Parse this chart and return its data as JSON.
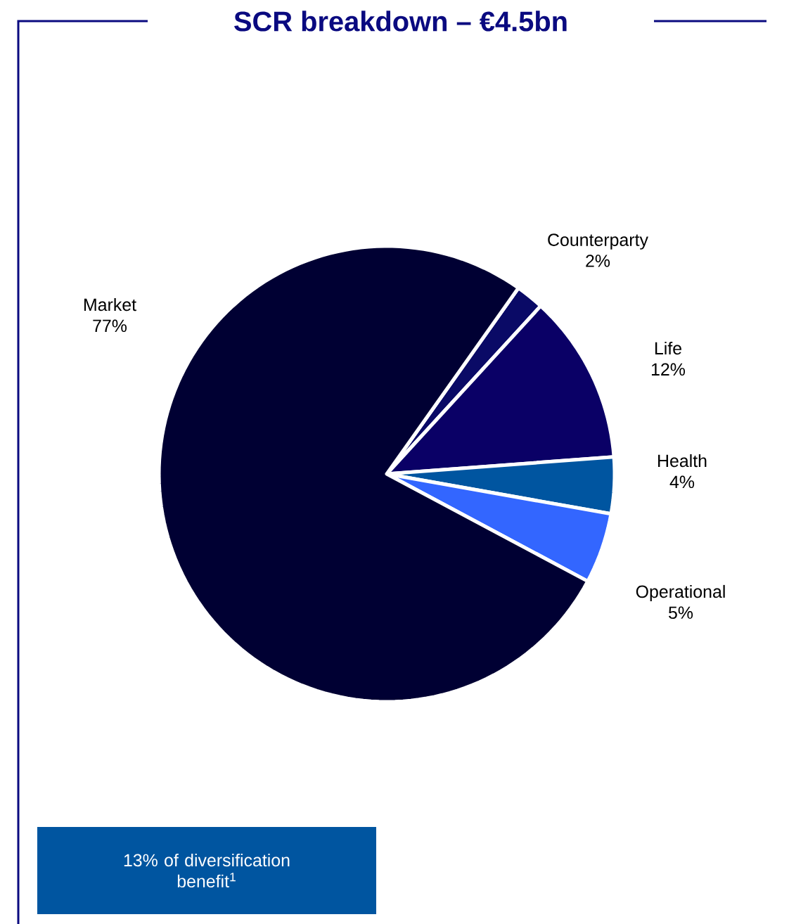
{
  "chart_data": {
    "type": "pie",
    "title": "SCR breakdown – €4.5bn",
    "categories": [
      "Counterparty",
      "Life",
      "Health",
      "Operational",
      "Market"
    ],
    "values": [
      2,
      12,
      4,
      5,
      77
    ],
    "value_labels": [
      "2%",
      "12%",
      "4%",
      "5%",
      "77%"
    ],
    "colors": [
      "#0a0a66",
      "#0a0066",
      "#0055a0",
      "#3366ff",
      "#000033"
    ],
    "annotations": [
      "13% of diversification benefit$^{1}$"
    ]
  }
}
